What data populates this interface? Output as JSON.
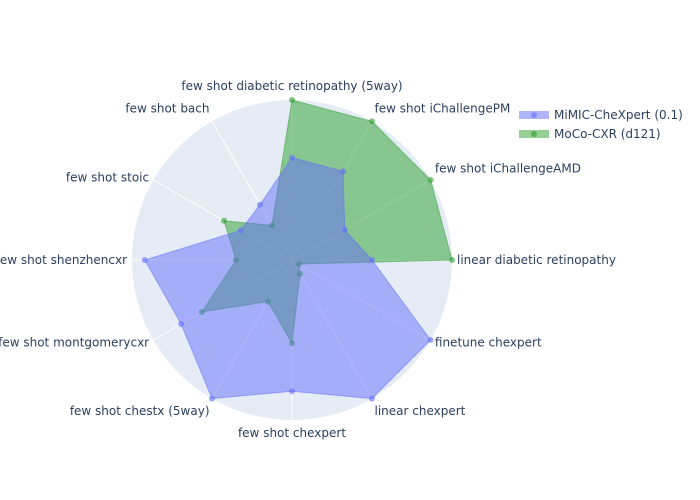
{
  "chart_data": {
    "type": "radar",
    "axes": [
      "linear diabetic retinopathy",
      "finetune chexpert",
      "linear chexpert",
      "few shot chexpert",
      "few shot chestx (5way)",
      "few shot montgomerycxr",
      "few shot shenzhencxr",
      "few shot stoic",
      "few shot bach",
      "few shot diabetic retinopathy (5way)",
      "few shot iChallengePM",
      "few shot iChallengeAMD"
    ],
    "range": [
      0,
      1
    ],
    "grid": true,
    "legend_position": "top-right",
    "series": [
      {
        "name": "MiMIC-CheXpert (0.1)",
        "color": "#636efa",
        "values": [
          0.5,
          1.0,
          1.0,
          0.82,
          1.0,
          0.8,
          0.92,
          0.37,
          0.4,
          0.64,
          0.64,
          0.38
        ]
      },
      {
        "name": "MoCo-CXR (d121)",
        "color": "#2ca02c",
        "values": [
          1.0,
          0.05,
          0.1,
          0.52,
          0.3,
          0.65,
          0.35,
          0.49,
          0.25,
          1.0,
          1.0,
          1.0
        ]
      }
    ]
  }
}
